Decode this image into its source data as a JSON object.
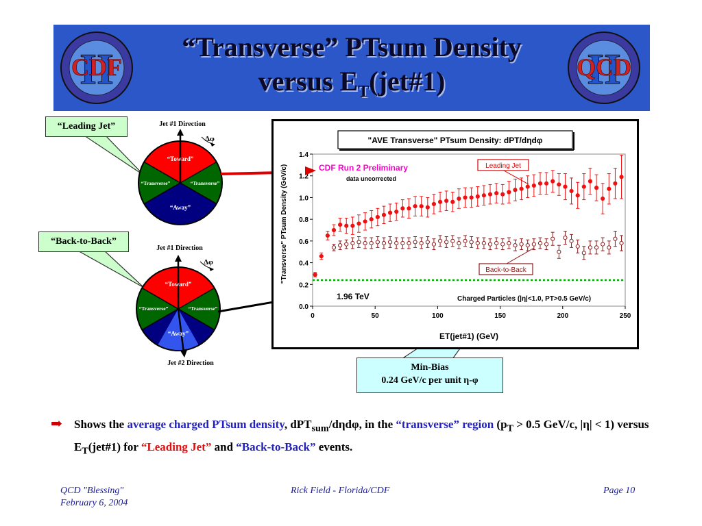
{
  "slide": {
    "title_line1": "“Transverse” PTsum Density",
    "title_line2_pre": "versus E",
    "title_line2_sub": "T",
    "title_line2_post": "(jet#1)",
    "logo_left": "CDF",
    "logo_right": "QCD",
    "roman_numeral": "II"
  },
  "diagram_top": {
    "callout": "“Leading Jet”",
    "jet1_label": "Jet #1 Direction",
    "delta_phi": "Δφ",
    "toward": "“Toward”",
    "transverse_left": "“Transverse”",
    "transverse_right": "“Transverse”",
    "away": "“Away”"
  },
  "diagram_bottom": {
    "callout": "“Back-to-Back”",
    "jet1_label": "Jet #1 Direction",
    "jet2_label": "Jet #2 Direction",
    "delta_phi": "Δφ",
    "toward": "“Toward”",
    "transverse_left": "“Transverse”",
    "transverse_right": "“Transverse”",
    "away": "“Away”"
  },
  "colors": {
    "banner": "#2c57c8",
    "toward": "#ff0000",
    "transverse": "#006600",
    "away": "#000080",
    "away_light": "#3355ee",
    "leading_series": "#ee1111",
    "b2b_series": "#8b1a1a",
    "minbias_line": "#00aa00",
    "arrow": "#dd0000"
  },
  "chart_data": {
    "type": "scatter",
    "title": "\"AVE Transverse\" PTsum Density: dPT/dηdφ",
    "xlabel": "ET(jet#1) (GeV)",
    "ylabel": "\"Transverse\" PTsum Density (GeV/c)",
    "xlim": [
      0,
      250
    ],
    "ylim": [
      0,
      1.4
    ],
    "xticks": [
      "0",
      "50",
      "100",
      "150",
      "200",
      "250"
    ],
    "yticks": [
      "0.0",
      "0.2",
      "0.4",
      "0.6",
      "0.8",
      "1.0",
      "1.2",
      "1.4"
    ],
    "preliminary": "CDF Run 2 Preliminary",
    "uncorrected": "data uncorrected",
    "energy": "1.96 TeV",
    "selection": "Charged Particles (|η|<1.0, PT>0.5 GeV/c)",
    "legend_leading": "Leading Jet",
    "legend_b2b": "Back-to-Back",
    "minbias_value": 0.24,
    "series": [
      {
        "name": "Leading Jet",
        "x": [
          2,
          7,
          12,
          17,
          22,
          27,
          32,
          37,
          42,
          47,
          52,
          57,
          62,
          67,
          72,
          77,
          82,
          87,
          92,
          97,
          102,
          107,
          112,
          117,
          122,
          127,
          132,
          137,
          142,
          147,
          152,
          157,
          162,
          167,
          172,
          177,
          182,
          187,
          192,
          197,
          202,
          207,
          212,
          217,
          222,
          227,
          232,
          237,
          242,
          247
        ],
        "y": [
          0.29,
          0.46,
          0.65,
          0.7,
          0.75,
          0.74,
          0.74,
          0.76,
          0.78,
          0.8,
          0.82,
          0.84,
          0.86,
          0.87,
          0.9,
          0.9,
          0.92,
          0.92,
          0.91,
          0.94,
          0.96,
          0.97,
          0.96,
          0.99,
          1.0,
          1.0,
          1.01,
          1.02,
          1.03,
          1.04,
          1.03,
          1.05,
          1.07,
          1.08,
          1.1,
          1.11,
          1.13,
          1.13,
          1.15,
          1.12,
          1.1,
          1.06,
          1.02,
          1.1,
          1.15,
          1.09,
          0.99,
          1.08,
          1.13,
          1.19
        ],
        "err": [
          0.02,
          0.03,
          0.04,
          0.05,
          0.06,
          0.07,
          0.08,
          0.08,
          0.08,
          0.08,
          0.08,
          0.08,
          0.08,
          0.08,
          0.08,
          0.09,
          0.09,
          0.09,
          0.09,
          0.09,
          0.09,
          0.09,
          0.09,
          0.09,
          0.09,
          0.09,
          0.09,
          0.09,
          0.09,
          0.09,
          0.09,
          0.1,
          0.1,
          0.1,
          0.1,
          0.1,
          0.1,
          0.1,
          0.1,
          0.1,
          0.12,
          0.12,
          0.12,
          0.12,
          0.12,
          0.12,
          0.14,
          0.14,
          0.14,
          0.2
        ]
      },
      {
        "name": "Back-to-Back",
        "x": [
          17,
          22,
          27,
          32,
          37,
          42,
          47,
          52,
          57,
          62,
          67,
          72,
          77,
          82,
          87,
          92,
          97,
          102,
          107,
          112,
          117,
          122,
          127,
          132,
          137,
          142,
          147,
          152,
          157,
          162,
          167,
          172,
          177,
          182,
          187,
          192,
          197,
          202,
          207,
          212,
          217,
          222,
          227,
          232,
          237,
          242,
          247
        ],
        "y": [
          0.54,
          0.56,
          0.57,
          0.58,
          0.59,
          0.58,
          0.58,
          0.59,
          0.58,
          0.59,
          0.58,
          0.58,
          0.58,
          0.59,
          0.58,
          0.59,
          0.57,
          0.6,
          0.59,
          0.6,
          0.58,
          0.6,
          0.59,
          0.58,
          0.58,
          0.57,
          0.58,
          0.57,
          0.58,
          0.56,
          0.57,
          0.56,
          0.57,
          0.58,
          0.57,
          0.62,
          0.5,
          0.63,
          0.6,
          0.55,
          0.49,
          0.54,
          0.54,
          0.57,
          0.54,
          0.62,
          0.58
        ],
        "err": [
          0.03,
          0.04,
          0.04,
          0.05,
          0.05,
          0.05,
          0.05,
          0.05,
          0.05,
          0.05,
          0.05,
          0.05,
          0.05,
          0.05,
          0.05,
          0.05,
          0.05,
          0.05,
          0.05,
          0.05,
          0.05,
          0.05,
          0.05,
          0.05,
          0.05,
          0.05,
          0.05,
          0.05,
          0.05,
          0.05,
          0.05,
          0.05,
          0.05,
          0.05,
          0.05,
          0.06,
          0.06,
          0.06,
          0.06,
          0.06,
          0.06,
          0.06,
          0.06,
          0.06,
          0.06,
          0.07,
          0.07
        ]
      }
    ]
  },
  "minbias_box": {
    "line1": "Min-Bias",
    "line2": "0.24 GeV/c per unit η-φ"
  },
  "body_text": {
    "bullet": "➡",
    "p1": "Shows the ",
    "p2": "average charged PTsum density",
    "p3": ", dPT",
    "p3_sub": "sum",
    "p4": "/dηdφ, in the ",
    "p5": "“transverse” region",
    "p6": " (p",
    "p6_sub": "T",
    "p7": " > 0.5 GeV/c, |η| < 1) versus E",
    "p7_sub": "T",
    "p8": "(jet#1) for ",
    "p9": "“Leading Jet”",
    "p10": " and ",
    "p11": "“Back-to-Back”",
    "p12": " events."
  },
  "footer": {
    "left_line1": "QCD \"Blessing\"",
    "left_line2": "February 6, 2004",
    "center": "Rick Field - Florida/CDF",
    "right": "Page 10"
  }
}
